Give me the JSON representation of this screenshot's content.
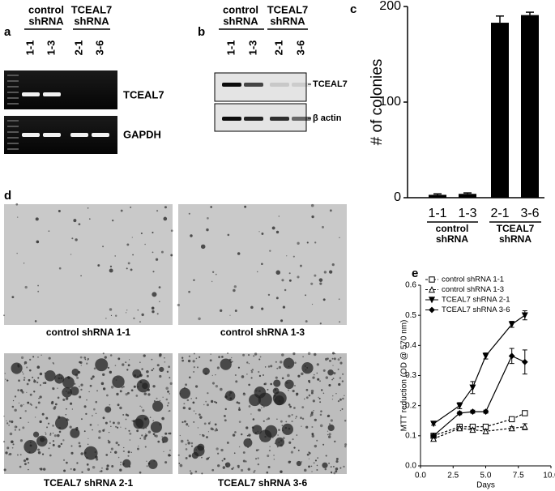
{
  "panel_a": {
    "label": "a",
    "groups": [
      {
        "line1": "control",
        "line2": "shRNA"
      },
      {
        "line1": "TCEAL7",
        "line2": "shRNA"
      }
    ],
    "lanes": [
      "1-1",
      "1-3",
      "2-1",
      "3-6"
    ],
    "bands": [
      "TCEAL7",
      "GAPDH"
    ]
  },
  "panel_b": {
    "label": "b",
    "groups": [
      {
        "line1": "control",
        "line2": "shRNA"
      },
      {
        "line1": "TCEAL7",
        "line2": "shRNA"
      }
    ],
    "lanes": [
      "1-1",
      "1-3",
      "2-1",
      "3-6"
    ],
    "bands": [
      "TCEAL7",
      "β actin"
    ]
  },
  "panel_d": {
    "label": "d",
    "captions": [
      "control shRNA 1-1",
      "control shRNA 1-3",
      "TCEAL7 shRNA 2-1",
      "TCEAL7 shRNA 3-6"
    ]
  },
  "chart_data": [
    {
      "type": "bar",
      "label": "c",
      "ylabel": "# of colonies",
      "categories": [
        "1-1",
        "1-3",
        "2-1",
        "3-6"
      ],
      "values": [
        3,
        4,
        183,
        191
      ],
      "errors": [
        1,
        1,
        7,
        3
      ],
      "groups": [
        {
          "line1": "control",
          "line2": "shRNA"
        },
        {
          "line1": "TCEAL7",
          "line2": "shRNA"
        }
      ],
      "color": "#000000",
      "ylim": [
        0,
        200
      ],
      "yticks": [
        0,
        100,
        200
      ]
    },
    {
      "type": "line",
      "label": "e",
      "xlabel": "Days",
      "ylabel": "MTT reduction (OD @ 570 nm)",
      "x": [
        1,
        3,
        4,
        5,
        7,
        8
      ],
      "series": [
        {
          "name": "control shRNA 1-1",
          "color": "#000000",
          "marker": "square-open",
          "linestyle": "dashed",
          "values": [
            0.1,
            0.13,
            0.13,
            0.13,
            0.155,
            0.175
          ],
          "errors": [
            0.005,
            0.005,
            0.005,
            0.005,
            0.005,
            0.005
          ]
        },
        {
          "name": "control shRNA 1-3",
          "color": "#000000",
          "marker": "triangle-open",
          "linestyle": "dashed",
          "values": [
            0.09,
            0.125,
            0.12,
            0.115,
            0.125,
            0.13
          ],
          "errors": [
            0.005,
            0.005,
            0.005,
            0.005,
            0.005,
            0.01
          ]
        },
        {
          "name": "TCEAL7 shRNA 2-1",
          "color": "#000000",
          "marker": "triangle-down",
          "linestyle": "solid",
          "values": [
            0.14,
            0.2,
            0.26,
            0.365,
            0.47,
            0.5
          ],
          "errors": [
            0.005,
            0.01,
            0.02,
            0.01,
            0.01,
            0.015
          ]
        },
        {
          "name": "TCEAL7 shRNA 3-6",
          "color": "#000000",
          "marker": "diamond",
          "linestyle": "solid",
          "values": [
            0.1,
            0.175,
            0.18,
            0.18,
            0.365,
            0.345
          ],
          "errors": [
            0.005,
            0.005,
            0.005,
            0.005,
            0.025,
            0.04
          ]
        }
      ],
      "legend": "upper left",
      "xlim": [
        0,
        10
      ],
      "xticks": [
        {
          "value": 0,
          "label": "0.0"
        },
        {
          "value": 2.5,
          "label": "2.5"
        },
        {
          "value": 5,
          "label": "5.0"
        },
        {
          "value": 7.5,
          "label": "7.5"
        },
        {
          "value": 10,
          "label": "10.0"
        }
      ],
      "ylim": [
        0,
        0.6
      ],
      "yticks": [
        {
          "value": 0,
          "label": "0.0"
        },
        0.1,
        0.2,
        0.3,
        0.4,
        0.5,
        0.6
      ]
    }
  ]
}
